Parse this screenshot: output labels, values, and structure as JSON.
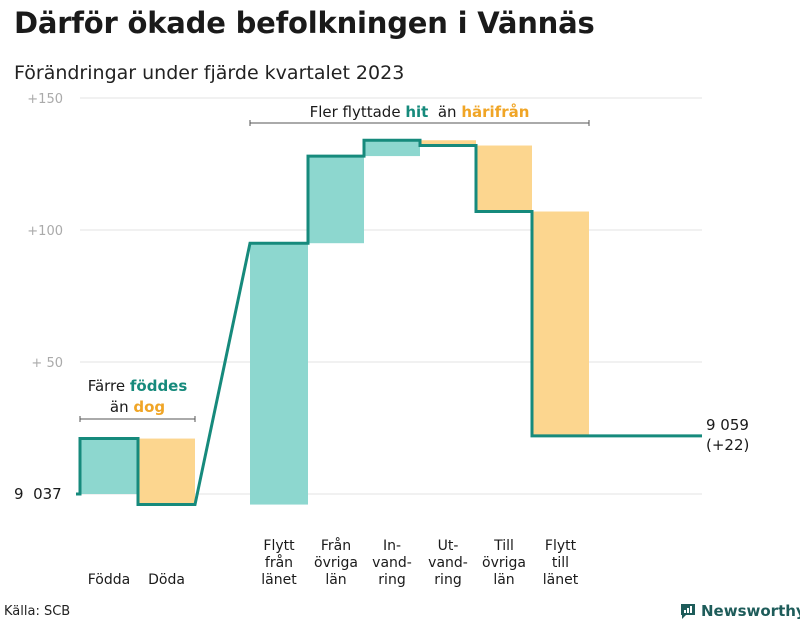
{
  "title": "Därför ökade befolkningen i Vännäs",
  "subtitle": "Förändringar under fjärde kvartalet 2023",
  "source": "Källa: SCB",
  "brand": {
    "name": "Newsworthy",
    "icon": "newsworthy-logo-icon",
    "color": "#1e5c5a"
  },
  "colors": {
    "increase": "#8dd7cf",
    "decrease": "#fcd68f",
    "line": "#168a7c",
    "highlight_hit": "#168a7c",
    "highlight_harifran": "#f0a526"
  },
  "chart_data": {
    "type": "waterfall",
    "start_label": "9  037",
    "start_value": 0,
    "end_label": "9 059",
    "end_sublabel": "(+22)",
    "end_value": 22,
    "y_ticks": [
      {
        "value": 150,
        "label": "+150"
      },
      {
        "value": 100,
        "label": "+100"
      },
      {
        "value": 50,
        "label": "+  50"
      }
    ],
    "ylim": [
      -4,
      150
    ],
    "steps": [
      {
        "label": "Födda",
        "lines": [
          "Födda"
        ],
        "delta": 21,
        "kind": "increase"
      },
      {
        "label": "Döda",
        "lines": [
          "Döda"
        ],
        "delta": -25,
        "kind": "decrease"
      },
      {
        "label": "Flytt från länet",
        "lines": [
          "Flytt",
          "från",
          "länet"
        ],
        "delta": 99,
        "kind": "increase"
      },
      {
        "label": "Från övriga län",
        "lines": [
          "Från",
          "övriga",
          "län"
        ],
        "delta": 33,
        "kind": "increase"
      },
      {
        "label": "In-vandring",
        "lines": [
          "In-",
          "vand-",
          "ring"
        ],
        "delta": 6,
        "kind": "increase"
      },
      {
        "label": "Ut-vandring",
        "lines": [
          "Ut-",
          "vand-",
          "ring"
        ],
        "delta": -2,
        "kind": "decrease"
      },
      {
        "label": "Till övriga län",
        "lines": [
          "Till",
          "övriga",
          "län"
        ],
        "delta": -25,
        "kind": "decrease"
      },
      {
        "label": "Flytt till länet",
        "lines": [
          "Flytt",
          "till",
          "länet"
        ],
        "delta": -85,
        "kind": "decrease"
      }
    ],
    "annotations": [
      {
        "name": "annotation-births",
        "from_step": 0,
        "to_step": 1,
        "line1": [
          {
            "text": "Färre ",
            "style": "plain"
          },
          {
            "text": "föddes",
            "style": "hit"
          }
        ],
        "line2": [
          {
            "text": "än ",
            "style": "plain"
          },
          {
            "text": "dog",
            "style": "harifran"
          }
        ]
      },
      {
        "name": "annotation-migration",
        "from_step": 2,
        "to_step": 7,
        "line1": [
          {
            "text": "Fler flyttade ",
            "style": "plain"
          },
          {
            "text": "hit",
            "style": "hit"
          },
          {
            "text": "  än ",
            "style": "plain"
          },
          {
            "text": "härifrån",
            "style": "harifran"
          }
        ]
      }
    ]
  }
}
